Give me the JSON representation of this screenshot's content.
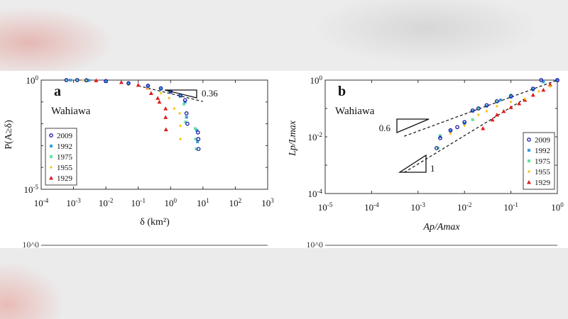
{
  "chart_data": [
    {
      "type": "scatter",
      "panel_label": "a",
      "site_label": "Wahiawa",
      "xlabel": "δ (km²)",
      "ylabel": "P(A≥δ)",
      "xscale": "log",
      "yscale": "log",
      "xlim": [
        0.0001,
        1000
      ],
      "ylim": [
        1e-05,
        1
      ],
      "xtick_exponents": [
        -4,
        -3,
        -2,
        -1,
        0,
        1,
        2,
        3
      ],
      "ytick_exponents": [
        -5,
        0
      ],
      "legend_position": "bottom-left",
      "reference_slope_label": "0.36",
      "series": [
        {
          "name": "2009",
          "color": "#1a1aa8",
          "marker": "circle",
          "points": [
            [
              0.0006,
              1
            ],
            [
              0.0013,
              1
            ],
            [
              0.0025,
              0.98
            ],
            [
              0.01,
              0.9
            ],
            [
              0.05,
              0.72
            ],
            [
              0.2,
              0.55
            ],
            [
              0.5,
              0.42
            ],
            [
              1,
              0.3
            ],
            [
              2,
              0.2
            ],
            [
              2.8,
              0.12
            ],
            [
              3.1,
              0.03
            ],
            [
              3.3,
              0.01
            ],
            [
              7,
              0.004
            ],
            [
              7.2,
              0.002
            ],
            [
              7.3,
              0.0007
            ]
          ]
        },
        {
          "name": "1992",
          "color": "#3a9be0",
          "marker": "square",
          "points": [
            [
              0.0008,
              1
            ],
            [
              0.003,
              0.97
            ],
            [
              0.01,
              0.88
            ],
            [
              0.05,
              0.7
            ],
            [
              0.2,
              0.52
            ],
            [
              0.5,
              0.4
            ],
            [
              1,
              0.29
            ],
            [
              2,
              0.19
            ],
            [
              2.8,
              0.1
            ],
            [
              3.1,
              0.02
            ],
            [
              6.5,
              0.005
            ],
            [
              6.8,
              0.0015
            ]
          ]
        },
        {
          "name": "1975",
          "color": "#66e0a0",
          "marker": "square",
          "points": [
            [
              0.0006,
              1
            ],
            [
              0.0013,
              1
            ],
            [
              0.0025,
              0.97
            ],
            [
              0.01,
              0.87
            ],
            [
              0.05,
              0.68
            ],
            [
              0.2,
              0.5
            ],
            [
              0.5,
              0.38
            ],
            [
              1,
              0.27
            ],
            [
              2,
              0.18
            ],
            [
              2.6,
              0.08
            ],
            [
              2.9,
              0.012
            ],
            [
              5.8,
              0.006
            ],
            [
              6,
              0.002
            ],
            [
              6.2,
              0.0007
            ]
          ]
        },
        {
          "name": "1955",
          "color": "#f5c518",
          "marker": "diamond",
          "points": [
            [
              0.002,
              1
            ],
            [
              0.01,
              0.85
            ],
            [
              0.05,
              0.62
            ],
            [
              0.2,
              0.42
            ],
            [
              0.5,
              0.25
            ],
            [
              0.9,
              0.15
            ],
            [
              1.3,
              0.05
            ],
            [
              1.9,
              0.03
            ],
            [
              2,
              0.008
            ],
            [
              2,
              0.002
            ]
          ]
        },
        {
          "name": "1929",
          "color": "#e01b1b",
          "marker": "triangle",
          "points": [
            [
              0.0025,
              1
            ],
            [
              0.005,
              0.97
            ],
            [
              0.01,
              0.92
            ],
            [
              0.03,
              0.8
            ],
            [
              0.1,
              0.6
            ],
            [
              0.2,
              0.45
            ],
            [
              0.25,
              0.25
            ],
            [
              0.4,
              0.15
            ],
            [
              0.45,
              0.1
            ],
            [
              0.7,
              0.05
            ],
            [
              0.7,
              0.02
            ],
            [
              0.72,
              0.0055
            ]
          ]
        }
      ],
      "fit_lines": [
        {
          "slope": -0.36,
          "x": [
            0.1,
            10
          ],
          "y0": 0.55
        }
      ]
    },
    {
      "type": "scatter",
      "panel_label": "b",
      "site_label": "Wahiawa",
      "xlabel": "Ap/Amax",
      "ylabel": "Lp/Lmax",
      "xscale": "log",
      "yscale": "log",
      "xlim": [
        1e-05,
        1
      ],
      "ylim": [
        0.0001,
        1
      ],
      "xtick_exponents": [
        -5,
        -4,
        -3,
        -2,
        -1,
        0
      ],
      "ytick_exponents": [
        -4,
        -2,
        0
      ],
      "legend_position": "bottom-right",
      "reference_slope_labels": [
        "0.6",
        "1"
      ],
      "series": [
        {
          "name": "2009",
          "color": "#1a1aa8",
          "marker": "circle",
          "points": [
            [
              0.0025,
              0.004
            ],
            [
              0.003,
              0.009
            ],
            [
              0.005,
              0.017
            ],
            [
              0.007,
              0.022
            ],
            [
              0.01,
              0.033
            ],
            [
              0.015,
              0.085
            ],
            [
              0.02,
              0.1
            ],
            [
              0.03,
              0.13
            ],
            [
              0.05,
              0.18
            ],
            [
              0.1,
              0.27
            ],
            [
              0.3,
              0.5
            ],
            [
              0.45,
              1
            ],
            [
              1,
              1
            ]
          ]
        },
        {
          "name": "1992",
          "color": "#3a9be0",
          "marker": "square",
          "points": [
            [
              0.003,
              0.01
            ],
            [
              0.005,
              0.016
            ],
            [
              0.01,
              0.03
            ],
            [
              0.015,
              0.08
            ],
            [
              0.03,
              0.12
            ],
            [
              0.06,
              0.2
            ],
            [
              0.1,
              0.25
            ],
            [
              0.3,
              0.45
            ],
            [
              0.5,
              0.9
            ],
            [
              1,
              1
            ]
          ]
        },
        {
          "name": "1975",
          "color": "#66e0a0",
          "marker": "square",
          "points": [
            [
              0.0027,
              0.004
            ],
            [
              0.003,
              0.011
            ],
            [
              0.005,
              0.016
            ],
            [
              0.01,
              0.03
            ],
            [
              0.015,
              0.04
            ],
            [
              0.02,
              0.1
            ],
            [
              0.05,
              0.17
            ],
            [
              0.1,
              0.3
            ],
            [
              0.3,
              0.5
            ],
            [
              0.5,
              0.85
            ],
            [
              1,
              1
            ]
          ]
        },
        {
          "name": "1955",
          "color": "#f5c518",
          "marker": "diamond",
          "points": [
            [
              0.005,
              0.013
            ],
            [
              0.01,
              0.025
            ],
            [
              0.02,
              0.06
            ],
            [
              0.03,
              0.08
            ],
            [
              0.05,
              0.12
            ],
            [
              0.1,
              0.17
            ],
            [
              0.2,
              0.22
            ],
            [
              0.4,
              0.4
            ],
            [
              0.7,
              0.6
            ],
            [
              1,
              1
            ]
          ]
        },
        {
          "name": "1929",
          "color": "#e01b1b",
          "marker": "triangle",
          "points": [
            [
              0.025,
              0.02
            ],
            [
              0.04,
              0.04
            ],
            [
              0.05,
              0.06
            ],
            [
              0.07,
              0.08
            ],
            [
              0.1,
              0.11
            ],
            [
              0.15,
              0.15
            ],
            [
              0.2,
              0.2
            ],
            [
              0.3,
              0.3
            ],
            [
              0.5,
              0.45
            ],
            [
              0.7,
              0.7
            ],
            [
              1,
              1
            ]
          ]
        }
      ],
      "fit_lines": [
        {
          "slope": 0.6,
          "x": [
            0.0005,
            1
          ],
          "y0": 1
        },
        {
          "slope": 1,
          "x": [
            0.0005,
            0.2
          ],
          "y0": 1.1
        }
      ]
    }
  ],
  "background_panels": {
    "left_top_tick": "10^0",
    "right_top_tick": "10^0"
  }
}
